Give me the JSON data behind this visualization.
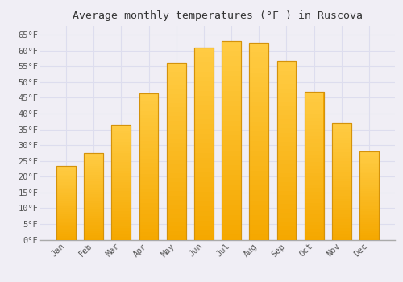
{
  "title": "Average monthly temperatures (°F ) in Ruscova",
  "months": [
    "Jan",
    "Feb",
    "Mar",
    "Apr",
    "May",
    "Jun",
    "Jul",
    "Aug",
    "Sep",
    "Oct",
    "Nov",
    "Dec"
  ],
  "values": [
    23.5,
    27.5,
    36.5,
    46.5,
    56.0,
    61.0,
    63.0,
    62.5,
    56.5,
    47.0,
    37.0,
    28.0
  ],
  "bar_color_top": "#FFCC44",
  "bar_color_bottom": "#F5A800",
  "bar_edge_color": "#D4920A",
  "background_color": "#F0EEF5",
  "plot_bg_color": "#F0EEF5",
  "grid_color": "#DDDDEE",
  "ylim": [
    0,
    68
  ],
  "yticks": [
    0,
    5,
    10,
    15,
    20,
    25,
    30,
    35,
    40,
    45,
    50,
    55,
    60,
    65
  ],
  "title_fontsize": 9.5,
  "tick_fontsize": 7.5,
  "tick_color": "#555555",
  "title_color": "#333333",
  "bar_width": 0.7
}
